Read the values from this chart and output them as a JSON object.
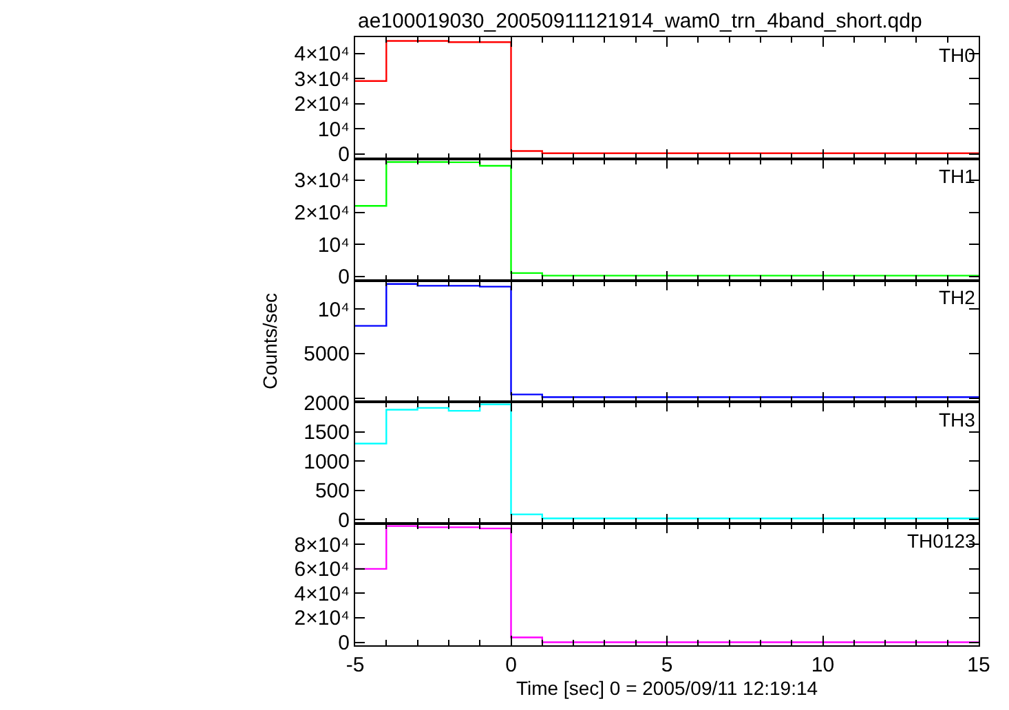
{
  "chart_data": [
    {
      "type": "histogram",
      "title": "ae100019030_20050911121914_wam0_trn_4band_short.qdp",
      "annotations": [
        "TH0"
      ],
      "color": "#ff0000",
      "bins": [
        -5,
        -4,
        -3,
        -2,
        -1,
        0,
        1,
        2,
        3,
        4,
        5,
        6,
        7,
        8,
        9,
        10,
        11,
        12,
        13,
        14,
        15
      ],
      "values": [
        29000,
        45000,
        45000,
        44500,
        44500,
        1100,
        200,
        200,
        200,
        200,
        200,
        200,
        200,
        200,
        200,
        200,
        200,
        200,
        200,
        200
      ],
      "xlim": [
        -5,
        15
      ],
      "xticks": [
        -5,
        0,
        5,
        10,
        15
      ],
      "ylim": [
        -2000,
        46500
      ],
      "yticks": [
        0,
        {
          "value": 10000,
          "label": "10⁴"
        },
        {
          "value": 20000,
          "label": "2×10⁴"
        },
        {
          "value": 30000,
          "label": "3×10⁴"
        },
        {
          "value": 40000,
          "label": "4×10⁴"
        }
      ],
      "tick_labels": "y"
    },
    {
      "type": "histogram",
      "annotations": [
        "TH1"
      ],
      "color": "#00ff00",
      "bins": [
        -5,
        -4,
        -3,
        -2,
        -1,
        0,
        1,
        2,
        3,
        4,
        5,
        6,
        7,
        8,
        9,
        10,
        11,
        12,
        13,
        14,
        15
      ],
      "values": [
        22000,
        35700,
        35700,
        35600,
        34500,
        1000,
        200,
        200,
        200,
        200,
        200,
        200,
        200,
        200,
        200,
        200,
        200,
        200,
        200,
        200
      ],
      "xlim": [
        -5,
        15
      ],
      "xticks": [
        -5,
        0,
        5,
        10,
        15
      ],
      "ylim": [
        -1300,
        36700
      ],
      "yticks": [
        0,
        {
          "value": 10000,
          "label": "10⁴"
        },
        {
          "value": 20000,
          "label": "2×10⁴"
        },
        {
          "value": 30000,
          "label": "3×10⁴"
        }
      ],
      "tick_labels": "y"
    },
    {
      "type": "histogram",
      "annotations": [
        "TH2"
      ],
      "ylabel": "Counts/sec",
      "color": "#0000ff",
      "bins": [
        -5,
        -4,
        -3,
        -2,
        -1,
        0,
        1,
        2,
        3,
        4,
        5,
        6,
        7,
        8,
        9,
        10,
        11,
        12,
        13,
        14,
        15
      ],
      "values": [
        8100,
        12800,
        12600,
        12600,
        12500,
        400,
        100,
        100,
        100,
        100,
        100,
        100,
        100,
        100,
        100,
        100,
        100,
        100,
        100,
        100
      ],
      "xlim": [
        -5,
        15
      ],
      "xticks": [
        -5,
        0,
        5,
        10,
        15
      ],
      "ylim": [
        -450,
        13200
      ],
      "yticks": [
        {
          "value": 0,
          "label": null
        },
        5000,
        {
          "value": 10000,
          "label": "10⁴"
        }
      ],
      "tick_labels": "y"
    },
    {
      "type": "histogram",
      "annotations": [
        "TH3"
      ],
      "color": "#00ffff",
      "bins": [
        -5,
        -4,
        -3,
        -2,
        -1,
        0,
        1,
        2,
        3,
        4,
        5,
        6,
        7,
        8,
        9,
        10,
        11,
        12,
        13,
        14,
        15
      ],
      "values": [
        1300,
        1880,
        1910,
        1860,
        1970,
        90,
        20,
        20,
        20,
        20,
        20,
        20,
        20,
        20,
        20,
        20,
        20,
        20,
        20,
        20
      ],
      "xlim": [
        -5,
        15
      ],
      "xticks": [
        -5,
        0,
        5,
        10,
        15
      ],
      "ylim": [
        -70,
        2010
      ],
      "yticks": [
        0,
        500,
        1000,
        1500,
        2000
      ],
      "tick_labels": "y"
    },
    {
      "type": "histogram",
      "annotations": [
        "TH0123"
      ],
      "xlabel": "Time [sec] 0 = 2005/09/11 12:19:14",
      "color": "#ff00ff",
      "bins": [
        -5,
        -4,
        -3,
        -2,
        -1,
        0,
        1,
        2,
        3,
        4,
        5,
        6,
        7,
        8,
        9,
        10,
        11,
        12,
        13,
        14,
        15
      ],
      "values": [
        60000,
        95000,
        94000,
        94000,
        93000,
        4000,
        0,
        0,
        0,
        0,
        0,
        0,
        0,
        0,
        0,
        0,
        0,
        0,
        0,
        0
      ],
      "xlim": [
        -5,
        15
      ],
      "xticks": [
        -5,
        0,
        5,
        10,
        15
      ],
      "ylim": [
        -2500,
        96900
      ],
      "yticks": [
        0,
        {
          "value": 20000,
          "label": "2×10⁴"
        },
        {
          "value": 40000,
          "label": "4×10⁴"
        },
        {
          "value": 60000,
          "label": "6×10⁴"
        },
        {
          "value": 80000,
          "label": "8×10⁴"
        }
      ]
    }
  ]
}
